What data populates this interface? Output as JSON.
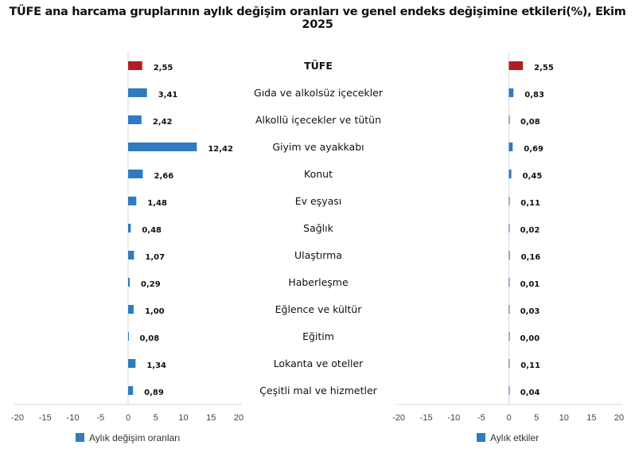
{
  "chart_data": [
    {
      "type": "bar",
      "orientation": "horizontal",
      "title": "TÜFE ana harcama gruplarının aylık değişim oranları ve genel endeks değişimine etkileri(%), Ekim 2025",
      "categories": [
        "TÜFE",
        "Gıda ve alkolsüz içecekler",
        "Alkollü içecekler ve tütün",
        "Giyim ve ayakkabı",
        "Konut",
        "Ev eşyası",
        "Sağlık",
        "Ulaştırma",
        "Haberleşme",
        "Eğlence ve kültür",
        "Eğitim",
        "Lokanta ve oteller",
        "Çeşitli mal ve hizmetler"
      ],
      "series": [
        {
          "name": "Aylık değişim oranları",
          "values": [
            2.55,
            3.41,
            2.42,
            12.42,
            2.66,
            1.48,
            0.48,
            1.07,
            0.29,
            1.0,
            0.08,
            1.34,
            0.89
          ],
          "labels": [
            "2,55",
            "3,41",
            "2,42",
            "12,42",
            "2,66",
            "1,48",
            "0,48",
            "1,07",
            "0,29",
            "1,00",
            "0,08",
            "1,34",
            "0,89"
          ]
        }
      ],
      "xlim": [
        -20,
        20
      ],
      "xticks": [
        "-20",
        "-15",
        "-10",
        "-5",
        "0",
        "5",
        "10",
        "15",
        "20"
      ],
      "legend": "bottom",
      "colors": {
        "series": "#2E7BBF",
        "highlight": "#B01E23"
      }
    },
    {
      "type": "bar",
      "orientation": "horizontal",
      "series": [
        {
          "name": "Aylık etkiler",
          "values": [
            2.55,
            0.83,
            0.08,
            0.69,
            0.45,
            0.11,
            0.02,
            0.16,
            0.01,
            0.03,
            0.0,
            0.11,
            0.04
          ],
          "labels": [
            "2,55",
            "0,83",
            "0,08",
            "0,69",
            "0,45",
            "0,11",
            "0,02",
            "0,16",
            "0,01",
            "0,03",
            "0,00",
            "0,11",
            "0,04"
          ]
        }
      ],
      "xlim": [
        -20,
        20
      ],
      "xticks": [
        "-20",
        "-15",
        "-10",
        "-5",
        "0",
        "5",
        "10",
        "15",
        "20"
      ],
      "legend": "bottom",
      "colors": {
        "series": "#2E7BBF",
        "highlight": "#B01E23"
      }
    }
  ]
}
